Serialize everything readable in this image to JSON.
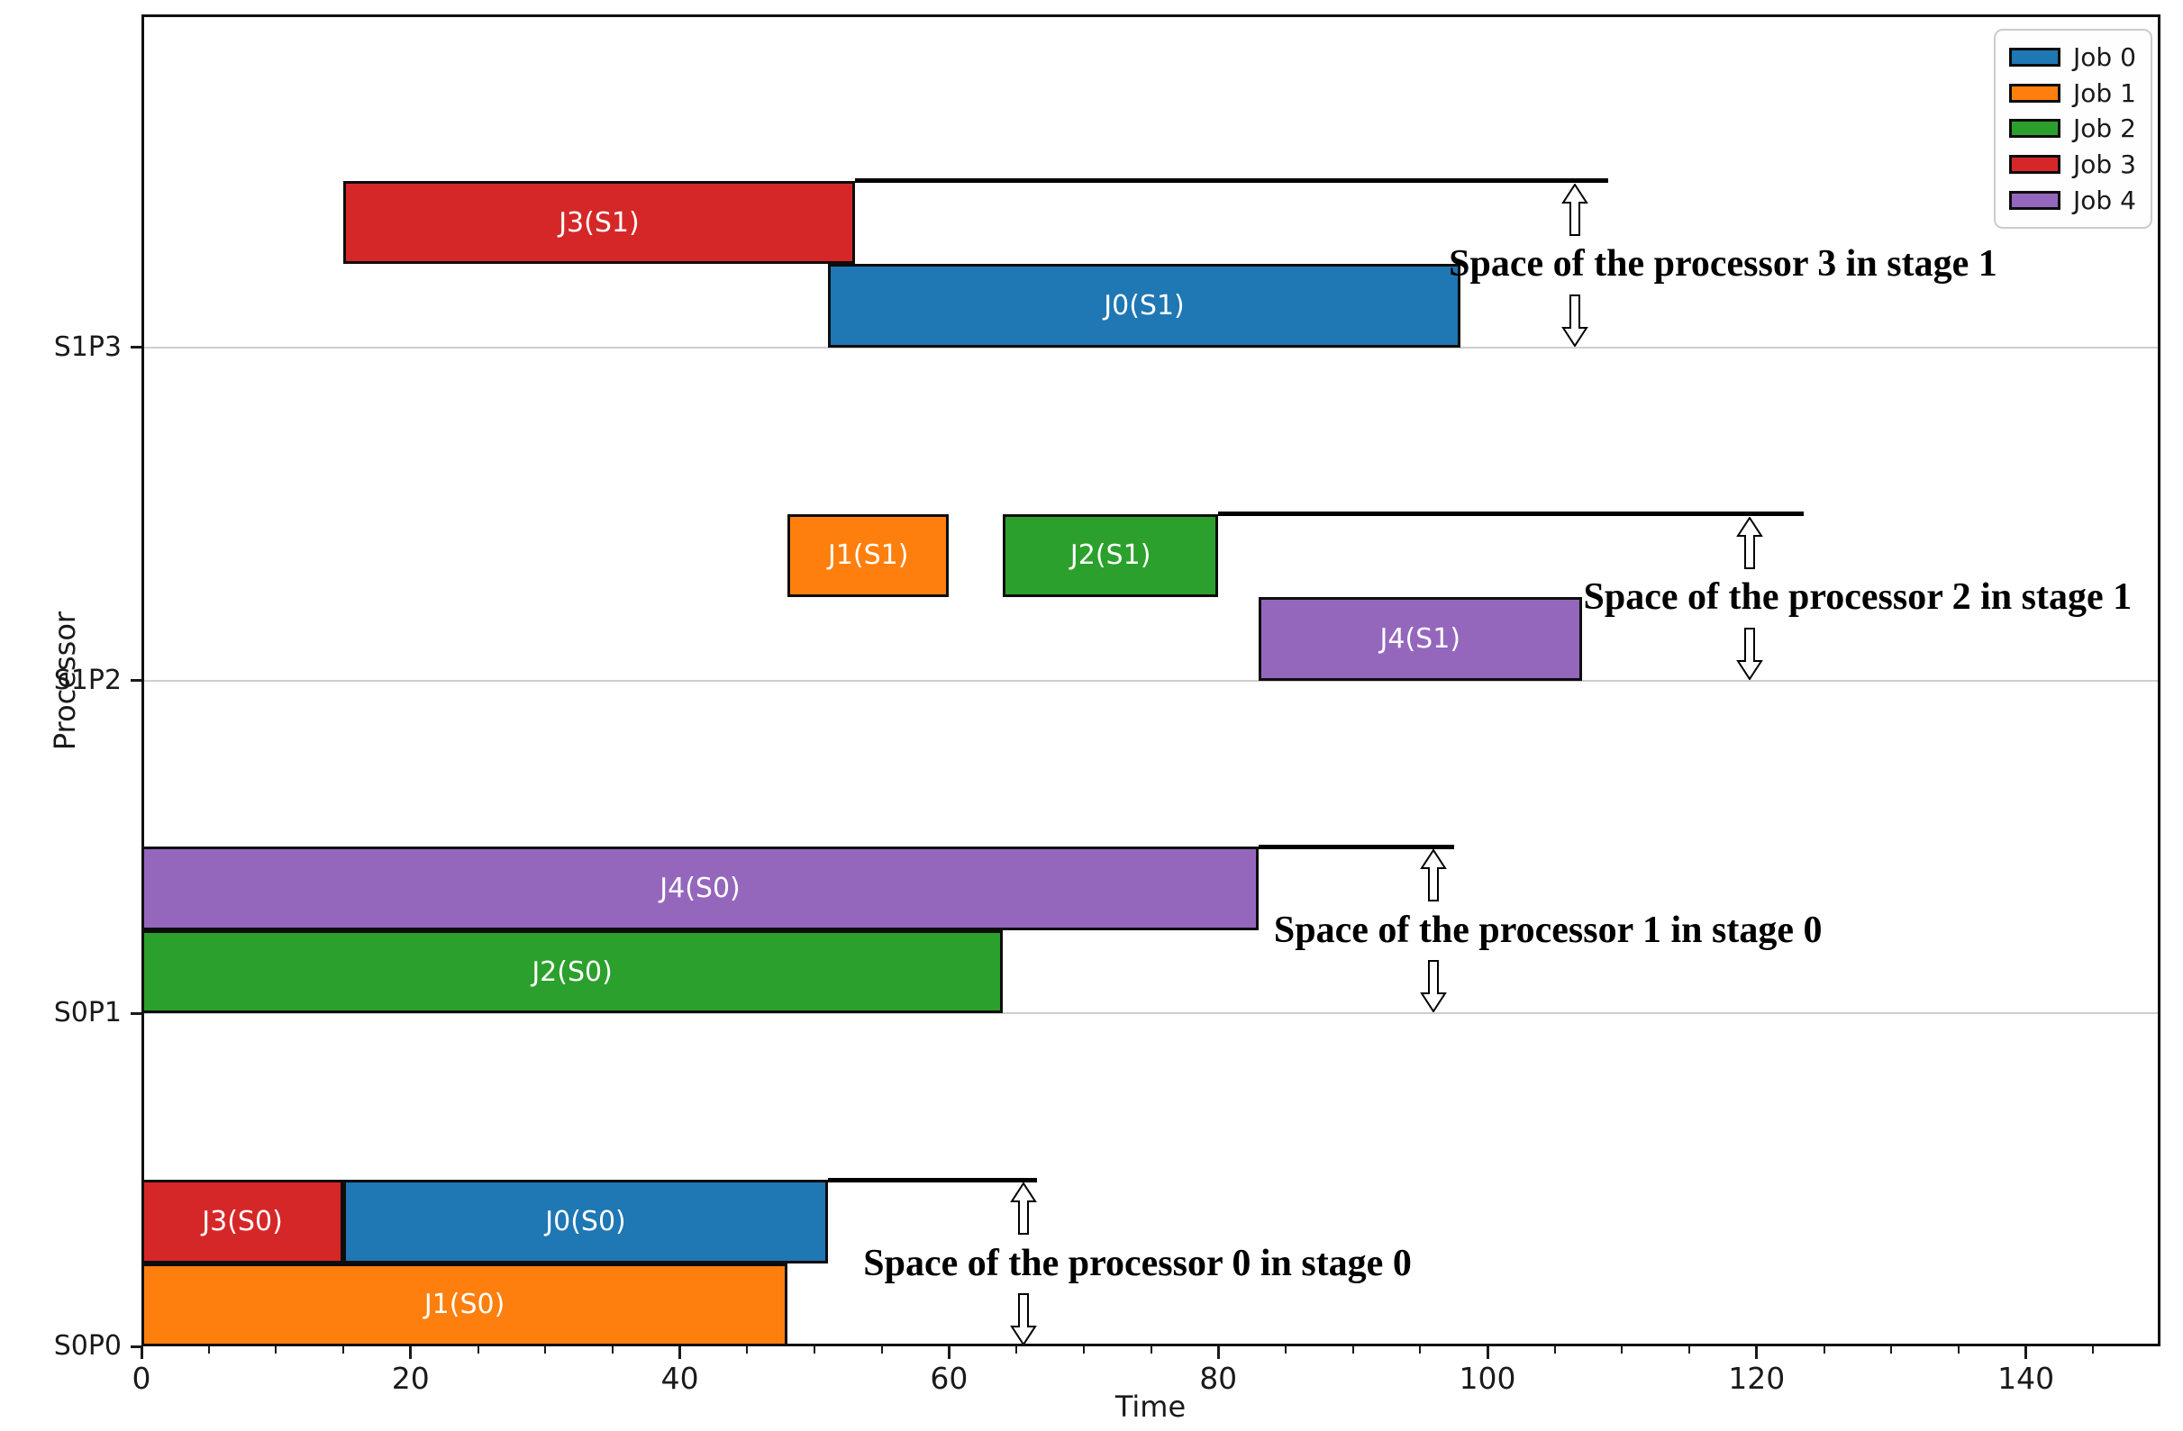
{
  "chart_data": {
    "type": "gantt",
    "xlabel": "Time",
    "ylabel": "Processor",
    "xlim": [
      0,
      150
    ],
    "x_major_ticks": [
      0,
      20,
      40,
      60,
      80,
      100,
      120,
      140
    ],
    "x_minor_tick_step": 5,
    "grid": "horizontal-only",
    "processors": [
      "S0P0",
      "S0P1",
      "S1P2",
      "S1P3"
    ],
    "legend": {
      "position": "upper-right",
      "entries": [
        {
          "label": "Job 0",
          "color": "#1f77b4"
        },
        {
          "label": "Job 1",
          "color": "#ff7f0e"
        },
        {
          "label": "Job 2",
          "color": "#2ca02c"
        },
        {
          "label": "Job 3",
          "color": "#d62728"
        },
        {
          "label": "Job 4",
          "color": "#9467bd"
        }
      ]
    },
    "tasks": [
      {
        "label": "J1(S0)",
        "job": "Job 1",
        "processor": "S0P0",
        "lane": 0,
        "start": 0,
        "end": 48,
        "color": "#ff7f0e"
      },
      {
        "label": "J3(S0)",
        "job": "Job 3",
        "processor": "S0P0",
        "lane": 1,
        "start": 0,
        "end": 15,
        "color": "#d62728"
      },
      {
        "label": "J0(S0)",
        "job": "Job 0",
        "processor": "S0P0",
        "lane": 1,
        "start": 15,
        "end": 51,
        "color": "#1f77b4"
      },
      {
        "label": "J2(S0)",
        "job": "Job 2",
        "processor": "S0P1",
        "lane": 0,
        "start": 0,
        "end": 64,
        "color": "#2ca02c"
      },
      {
        "label": "J4(S0)",
        "job": "Job 4",
        "processor": "S0P1",
        "lane": 1,
        "start": 0,
        "end": 83,
        "color": "#9467bd"
      },
      {
        "label": "J4(S1)",
        "job": "Job 4",
        "processor": "S1P2",
        "lane": 0,
        "start": 83,
        "end": 107,
        "color": "#9467bd"
      },
      {
        "label": "J1(S1)",
        "job": "Job 1",
        "processor": "S1P2",
        "lane": 1,
        "start": 48,
        "end": 60,
        "color": "#ff7f0e"
      },
      {
        "label": "J2(S1)",
        "job": "Job 2",
        "processor": "S1P2",
        "lane": 1,
        "start": 64,
        "end": 80,
        "color": "#2ca02c"
      },
      {
        "label": "J0(S1)",
        "job": "Job 0",
        "processor": "S1P3",
        "lane": 0,
        "start": 51,
        "end": 98,
        "color": "#1f77b4"
      },
      {
        "label": "J3(S1)",
        "job": "Job 3",
        "processor": "S1P3",
        "lane": 1,
        "start": 15,
        "end": 53,
        "color": "#d62728"
      }
    ],
    "space_annotations": [
      {
        "processor": "S0P0",
        "text": "Space of the processor 0 in stage 0",
        "line_start": 51,
        "line_end": 66.5,
        "arrow_t": 65.5,
        "text_center_t": 74
      },
      {
        "processor": "S0P1",
        "text": "Space of the processor 1 in stage 0",
        "line_start": 83,
        "line_end": 97.5,
        "arrow_t": 96,
        "text_center_t": 104.5
      },
      {
        "processor": "S1P2",
        "text": "Space of the processor 2 in stage 1",
        "line_start": 80,
        "line_end": 123.5,
        "arrow_t": 119.5,
        "text_center_t": 127.5
      },
      {
        "processor": "S1P3",
        "text": "Space of the processor 3 in stage 1",
        "line_start": 53,
        "line_end": 109,
        "arrow_t": 106.5,
        "text_center_t": 117.5
      }
    ],
    "style": {
      "bar_edge_color": "#0d0d0d",
      "bar_label_color": "#ffffff",
      "space_line_color": "#000000",
      "grid_color": "#cdcdcd",
      "spine_color": "#111111",
      "tick_color": "#1a1a1a"
    }
  }
}
